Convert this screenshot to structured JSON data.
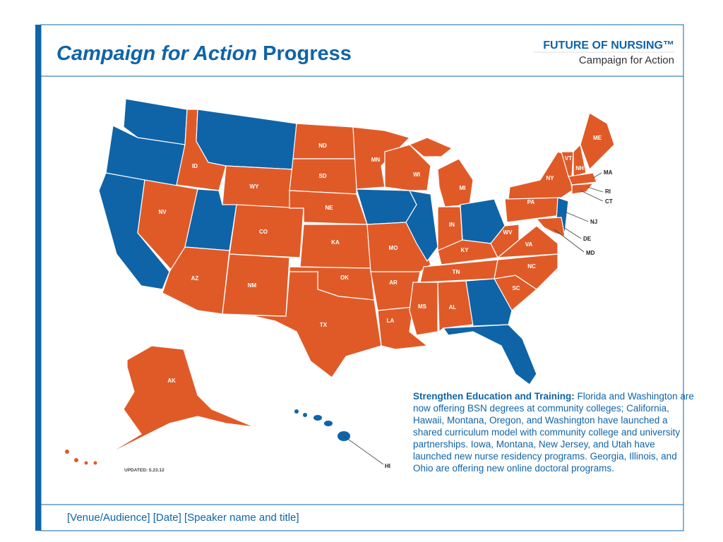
{
  "header": {
    "title_italic": "Campaign for Action",
    "title_rest": "Progress",
    "logo_line1": "FUTURE OF NURSING™",
    "logo_line2": "Campaign for Action"
  },
  "map": {
    "labels": [
      "ND",
      "SD",
      "NE",
      "KA",
      "OK",
      "TX",
      "MN",
      "WI",
      "MI",
      "IN",
      "KY",
      "MO",
      "AR",
      "LA",
      "MS",
      "AL",
      "TN",
      "WY",
      "ID",
      "NV",
      "CO",
      "AZ",
      "NM",
      "WV",
      "VA",
      "NC",
      "SC",
      "PA",
      "NY",
      "VT",
      "NH",
      "ME",
      "AK"
    ],
    "callouts": [
      "MA",
      "RI",
      "CT",
      "NJ",
      "DE",
      "MD",
      "HI"
    ],
    "updated": "UPDATED: 5.23.12"
  },
  "description": {
    "heading": "Strengthen Education and Training:",
    "text": "Florida and Washington are now offering BSN degrees at community colleges; California, Hawaii, Montana, Oregon, and Washington have launched a shared curriculum model with community college and university partnerships. Iowa, Montana, New Jersey, and Utah have launched new nurse residency programs. Georgia, Illinois, and Ohio are offering new online doctoral programs."
  },
  "footer": {
    "text": "[Venue/Audience] [Date] [Speaker name and title]"
  }
}
